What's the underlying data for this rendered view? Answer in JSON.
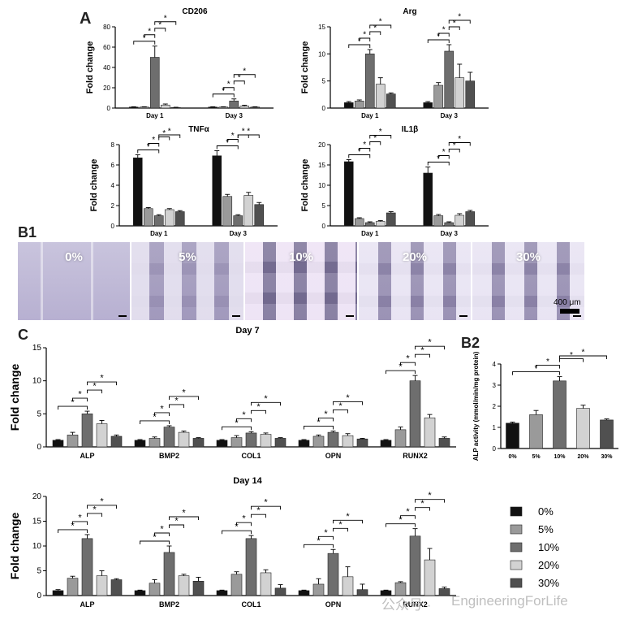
{
  "labels": {
    "A": "A",
    "B1": "B1",
    "B2": "B2",
    "C": "C"
  },
  "scale_bar": "400 μm",
  "watermark": "EngineeringForLife",
  "watermark_prefix": "公众号 ·",
  "colors": {
    "0%": "#111111",
    "5%": "#9a9a9a",
    "10%": "#6e6e6e",
    "20%": "#d2d2d2",
    "30%": "#505050"
  },
  "micro_panels": [
    {
      "label": "0%",
      "pattern": "plain"
    },
    {
      "label": "5%",
      "pattern": "grid-light"
    },
    {
      "label": "10%",
      "pattern": "grid-strong"
    },
    {
      "label": "20%",
      "pattern": "grid-med"
    },
    {
      "label": "30%",
      "pattern": "grid-med"
    }
  ],
  "legend": {
    "entries": [
      "0%",
      "5%",
      "10%",
      "20%",
      "30%"
    ],
    "placement": "bottom-right"
  },
  "chart_data": [
    {
      "id": "cd206",
      "type": "bar",
      "title": "CD206",
      "ylabel": "Fold change",
      "ylim": [
        0,
        80
      ],
      "yticks": [
        0,
        20,
        40,
        60,
        80
      ],
      "categories": [
        "Day 1",
        "Day 3"
      ],
      "series": [
        {
          "name": "0%",
          "values": [
            1,
            1
          ],
          "err": [
            0.3,
            0.3
          ]
        },
        {
          "name": "5%",
          "values": [
            1,
            1
          ],
          "err": [
            0.3,
            0.3
          ]
        },
        {
          "name": "10%",
          "values": [
            50,
            7
          ],
          "err": [
            11,
            2
          ]
        },
        {
          "name": "20%",
          "values": [
            3,
            2
          ],
          "err": [
            1,
            0.8
          ]
        },
        {
          "name": "30%",
          "values": [
            0.5,
            1
          ],
          "err": [
            0.3,
            0.3
          ]
        }
      ],
      "sig": "*"
    },
    {
      "id": "arg",
      "type": "bar",
      "title": "Arg",
      "ylabel": "Fold change",
      "ylim": [
        0,
        15
      ],
      "yticks": [
        0,
        5,
        10,
        15
      ],
      "categories": [
        "Day 1",
        "Day 3"
      ],
      "series": [
        {
          "name": "0%",
          "values": [
            1,
            1
          ],
          "err": [
            0.2,
            0.2
          ]
        },
        {
          "name": "5%",
          "values": [
            1.3,
            4.2
          ],
          "err": [
            0.2,
            0.5
          ]
        },
        {
          "name": "10%",
          "values": [
            10,
            10.5
          ],
          "err": [
            0.8,
            1.2
          ]
        },
        {
          "name": "20%",
          "values": [
            4.4,
            5.6
          ],
          "err": [
            1.2,
            2.5
          ]
        },
        {
          "name": "30%",
          "values": [
            2.6,
            5
          ],
          "err": [
            0.2,
            1.6
          ]
        }
      ],
      "sig": "*"
    },
    {
      "id": "tnfa",
      "type": "bar",
      "title": "TNFα",
      "ylabel": "Fold change",
      "ylim": [
        0,
        8
      ],
      "yticks": [
        0,
        2,
        4,
        6,
        8
      ],
      "categories": [
        "Day 1",
        "Day 3"
      ],
      "series": [
        {
          "name": "0%",
          "values": [
            6.7,
            6.9
          ],
          "err": [
            0.3,
            0.5
          ]
        },
        {
          "name": "5%",
          "values": [
            1.7,
            2.9
          ],
          "err": [
            0.1,
            0.2
          ]
        },
        {
          "name": "10%",
          "values": [
            1,
            1
          ],
          "err": [
            0.1,
            0.1
          ]
        },
        {
          "name": "20%",
          "values": [
            1.6,
            3
          ],
          "err": [
            0.1,
            0.3
          ]
        },
        {
          "name": "30%",
          "values": [
            1.4,
            2.1
          ],
          "err": [
            0.1,
            0.2
          ]
        }
      ],
      "sig": "*"
    },
    {
      "id": "il1b",
      "type": "bar",
      "title": "IL1β",
      "ylabel": "Fold change",
      "ylim": [
        0,
        20
      ],
      "yticks": [
        0,
        5,
        10,
        15,
        20
      ],
      "categories": [
        "Day 1",
        "Day 3"
      ],
      "series": [
        {
          "name": "0%",
          "values": [
            15.8,
            13
          ],
          "err": [
            0.5,
            1.5
          ]
        },
        {
          "name": "5%",
          "values": [
            1.8,
            2.5
          ],
          "err": [
            0.2,
            0.3
          ]
        },
        {
          "name": "10%",
          "values": [
            0.8,
            0.8
          ],
          "err": [
            0.2,
            0.2
          ]
        },
        {
          "name": "20%",
          "values": [
            1.1,
            2.6
          ],
          "err": [
            0.2,
            0.4
          ]
        },
        {
          "name": "30%",
          "values": [
            3.2,
            3.5
          ],
          "err": [
            0.3,
            0.3
          ]
        }
      ],
      "sig": "*"
    },
    {
      "id": "day7",
      "type": "bar",
      "title": "Day 7",
      "ylabel": "Fold change",
      "ylim": [
        0,
        15
      ],
      "yticks": [
        0,
        5,
        10,
        15
      ],
      "categories": [
        "ALP",
        "BMP2",
        "COL1",
        "OPN",
        "RUNX2"
      ],
      "series": [
        {
          "name": "0%",
          "values": [
            1,
            1,
            1,
            1,
            1
          ],
          "err": [
            0.1,
            0.1,
            0.1,
            0.1,
            0.1
          ]
        },
        {
          "name": "5%",
          "values": [
            1.8,
            1.3,
            1.4,
            1.6,
            2.6
          ],
          "err": [
            0.4,
            0.2,
            0.3,
            0.2,
            0.4
          ]
        },
        {
          "name": "10%",
          "values": [
            5,
            3,
            2.1,
            2.2,
            10
          ],
          "err": [
            0.4,
            0.2,
            0.2,
            0.2,
            0.8
          ]
        },
        {
          "name": "20%",
          "values": [
            3.5,
            2.2,
            1.9,
            1.7,
            4.4
          ],
          "err": [
            0.5,
            0.2,
            0.2,
            0.3,
            0.5
          ]
        },
        {
          "name": "30%",
          "values": [
            1.6,
            1.3,
            1.3,
            1.2,
            1.3
          ],
          "err": [
            0.2,
            0.1,
            0.1,
            0.1,
            0.2
          ]
        }
      ],
      "sig": "*"
    },
    {
      "id": "alp_activity",
      "type": "bar",
      "ylabel": "ALP activity (mmol/min/mg protein)",
      "ylim": [
        0,
        4
      ],
      "yticks": [
        0,
        1,
        2,
        3,
        4
      ],
      "categories": [
        "0%",
        "5%",
        "10%",
        "20%",
        "30%"
      ],
      "values": [
        1.2,
        1.6,
        3.2,
        1.9,
        1.35
      ],
      "err": [
        0.05,
        0.2,
        0.2,
        0.15,
        0.05
      ],
      "sig": "*"
    },
    {
      "id": "day14",
      "type": "bar",
      "title": "Day 14",
      "ylabel": "Fold change",
      "ylim": [
        0,
        20
      ],
      "yticks": [
        0,
        5,
        10,
        15,
        20
      ],
      "categories": [
        "ALP",
        "BMP2",
        "COL1",
        "OPN",
        "RUNX2"
      ],
      "series": [
        {
          "name": "0%",
          "values": [
            1,
            1,
            1,
            1,
            1
          ],
          "err": [
            0.2,
            0.1,
            0.1,
            0.1,
            0.1
          ]
        },
        {
          "name": "5%",
          "values": [
            3.5,
            2.5,
            4.3,
            2.3,
            2.6
          ],
          "err": [
            0.4,
            0.7,
            0.5,
            1.1,
            0.2
          ]
        },
        {
          "name": "10%",
          "values": [
            11.5,
            8.7,
            11.5,
            8.5,
            12
          ],
          "err": [
            0.8,
            1.3,
            0.6,
            0.8,
            1.5
          ]
        },
        {
          "name": "20%",
          "values": [
            4,
            4,
            4.6,
            3.8,
            7.2
          ],
          "err": [
            1,
            0.3,
            0.6,
            2,
            2.3
          ]
        },
        {
          "name": "30%",
          "values": [
            3.2,
            2.9,
            1.5,
            1.2,
            1.4
          ],
          "err": [
            0.2,
            0.8,
            0.7,
            1.1,
            0.3
          ]
        }
      ],
      "sig": "*"
    }
  ]
}
